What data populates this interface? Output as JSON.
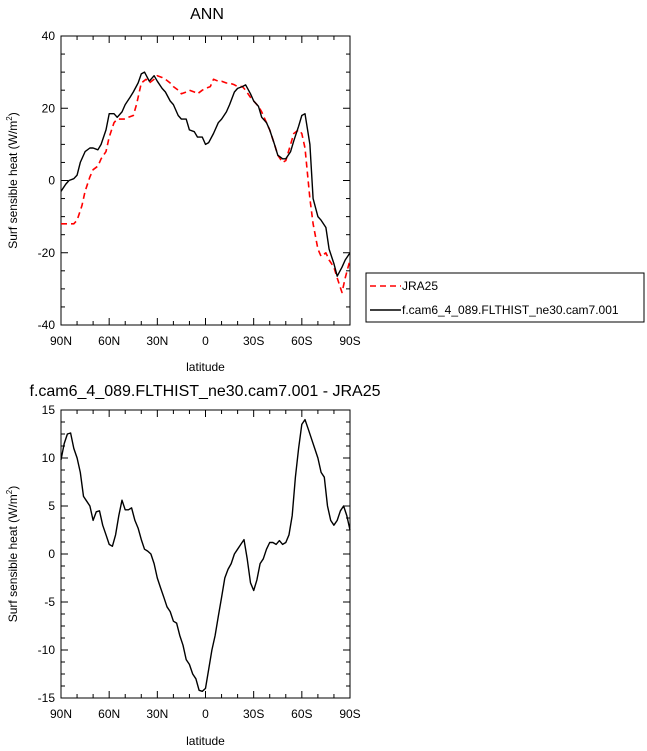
{
  "chart_data": [
    {
      "type": "line",
      "title": "ANN",
      "xlabel": "latitude",
      "ylabel": "Surf sensible heat (W/m",
      "ylabel_sup": "2",
      "ylabel_tail": ")",
      "xlim": [
        90,
        -90
      ],
      "ylim": [
        -40,
        40
      ],
      "xticks": [
        90,
        60,
        30,
        0,
        -30,
        -60,
        -90
      ],
      "xtick_labels": [
        "90N",
        "60N",
        "30N",
        "0",
        "30S",
        "60S",
        "90S"
      ],
      "yticks": [
        -40,
        -20,
        0,
        20,
        40
      ],
      "ytick_labels": [
        "-40",
        "-20",
        "0",
        "20",
        "40"
      ],
      "grid": false,
      "legend": "outside-right",
      "series": [
        {
          "name": "JRA25",
          "color": "#ff0000",
          "dash": "dashed",
          "x": [
            90,
            85,
            82,
            80,
            77,
            75,
            72,
            70,
            67,
            65,
            62,
            60,
            57,
            55,
            52,
            50,
            48,
            45,
            43,
            40,
            37,
            35,
            32,
            30,
            27,
            25,
            22,
            20,
            17,
            15,
            12,
            10,
            7,
            5,
            2,
            0,
            -3,
            -5,
            -8,
            -10,
            -13,
            -15,
            -18,
            -20,
            -23,
            -25,
            -28,
            -30,
            -33,
            -35,
            -38,
            -40,
            -43,
            -45,
            -48,
            -50,
            -53,
            -55,
            -58,
            -60,
            -62,
            -65,
            -67,
            -70,
            -72,
            -75,
            -77,
            -80,
            -82,
            -85,
            -87,
            -90
          ],
          "y": [
            -12,
            -12,
            -12,
            -11,
            -7,
            -3,
            1,
            3,
            4,
            6,
            8,
            12,
            16,
            17,
            17,
            17,
            17.5,
            18,
            21,
            27,
            28,
            27,
            28,
            29,
            28.5,
            28,
            27,
            26,
            25,
            24,
            24.5,
            25,
            24.5,
            24,
            25,
            25.5,
            26,
            28,
            27.5,
            27.5,
            27,
            27,
            26.5,
            26,
            26,
            25,
            23,
            22,
            20.5,
            19,
            16,
            14,
            10,
            7,
            5,
            5.5,
            10,
            13,
            14,
            13,
            9,
            -5,
            -12,
            -19,
            -21,
            -20,
            -22,
            -24,
            -27,
            -31,
            -27,
            -22
          ]
        },
        {
          "name": "f.cam6_4_089.FLTHIST_ne30.cam7.001",
          "color": "#000000",
          "dash": "solid",
          "x": [
            90,
            87,
            85,
            82,
            80,
            78,
            75,
            72,
            70,
            67,
            65,
            62,
            60,
            57,
            55,
            52,
            50,
            47,
            45,
            42,
            40,
            38,
            35,
            32,
            30,
            27,
            25,
            22,
            20,
            17,
            15,
            12,
            10,
            7,
            5,
            2,
            0,
            -2,
            -5,
            -8,
            -10,
            -13,
            -15,
            -18,
            -20,
            -23,
            -25,
            -28,
            -30,
            -33,
            -35,
            -38,
            -40,
            -43,
            -45,
            -48,
            -50,
            -53,
            -55,
            -58,
            -60,
            -62,
            -65,
            -67,
            -70,
            -72,
            -75,
            -77,
            -80,
            -82,
            -85,
            -87,
            -90
          ],
          "y": [
            -3,
            -1,
            0,
            0.5,
            1.5,
            5,
            8,
            9,
            9,
            8.5,
            10,
            14,
            18.5,
            18.5,
            17.5,
            19,
            21,
            23,
            24.5,
            27,
            29.5,
            30,
            27.5,
            29,
            27.5,
            25.5,
            24.5,
            22,
            21,
            18,
            17,
            17,
            14,
            13.5,
            12,
            12,
            10,
            10.5,
            13,
            16,
            17,
            19,
            21,
            24.5,
            25.5,
            26,
            26.5,
            24,
            22,
            20.5,
            17.5,
            16,
            14,
            10,
            7,
            6,
            6,
            8,
            11,
            15,
            18,
            18.5,
            10,
            -5,
            -10,
            -11,
            -13,
            -19,
            -23,
            -26.5,
            -24,
            -22,
            -20
          ]
        }
      ]
    },
    {
      "type": "line",
      "title": "f.cam6_4_089.FLTHIST_ne30.cam7.001 - JRA25",
      "xlabel": "latitude",
      "ylabel": "Surf sensible heat (W/m",
      "ylabel_sup": "2",
      "ylabel_tail": ")",
      "xlim": [
        90,
        -90
      ],
      "ylim": [
        -15,
        15
      ],
      "xticks": [
        90,
        60,
        30,
        0,
        -30,
        -60,
        -90
      ],
      "xtick_labels": [
        "90N",
        "60N",
        "30N",
        "0",
        "30S",
        "60S",
        "90S"
      ],
      "yticks": [
        -15,
        -10,
        -5,
        0,
        5,
        10,
        15
      ],
      "ytick_labels": [
        "-15",
        "-10",
        "-5",
        "0",
        "5",
        "10",
        "15"
      ],
      "grid": false,
      "series": [
        {
          "color": "#000000",
          "dash": "solid",
          "x": [
            90,
            88,
            86,
            84,
            82,
            80,
            78,
            76,
            74,
            72,
            70,
            68,
            66,
            64,
            62,
            60,
            58,
            56,
            54,
            52,
            50,
            48,
            46,
            44,
            42,
            40,
            38,
            36,
            34,
            32,
            30,
            28,
            26,
            24,
            22,
            20,
            18,
            16,
            14,
            12,
            10,
            8,
            6,
            4,
            2,
            0,
            -2,
            -4,
            -6,
            -8,
            -10,
            -12,
            -14,
            -16,
            -18,
            -20,
            -22,
            -24,
            -26,
            -28,
            -30,
            -32,
            -34,
            -36,
            -38,
            -40,
            -42,
            -44,
            -46,
            -48,
            -50,
            -52,
            -54,
            -56,
            -58,
            -60,
            -62,
            -64,
            -66,
            -68,
            -70,
            -72,
            -74,
            -76,
            -78,
            -80,
            -82,
            -84,
            -86,
            -88,
            -90
          ],
          "y": [
            9.8,
            11.5,
            12.5,
            12.6,
            11,
            10,
            8.5,
            6,
            5.5,
            5,
            3.5,
            4.4,
            4.5,
            3,
            2,
            1,
            0.8,
            2,
            4,
            5.6,
            4.6,
            4.6,
            4.8,
            3.5,
            2.7,
            1.5,
            0.5,
            0.3,
            0,
            -1,
            -2.5,
            -3.5,
            -4.5,
            -5.5,
            -6,
            -7,
            -7.2,
            -8.5,
            -9.5,
            -11,
            -11.5,
            -12.5,
            -13,
            -14.2,
            -14.3,
            -14,
            -12,
            -10,
            -8.5,
            -6.5,
            -4.5,
            -2.5,
            -1.6,
            -1,
            0,
            0.5,
            1,
            1.5,
            -0.5,
            -3,
            -3.8,
            -2.7,
            -1,
            -0.5,
            0.5,
            1.2,
            1.2,
            1,
            1.4,
            1,
            1.2,
            2,
            4,
            8,
            11,
            13.5,
            14,
            13,
            12,
            11,
            10,
            8.5,
            8,
            5,
            3.5,
            3,
            3.5,
            4.5,
            5,
            4,
            2.5
          ]
        }
      ]
    }
  ],
  "legend": {
    "entries": [
      {
        "label": "JRA25",
        "color": "#ff0000",
        "dash": "dashed"
      },
      {
        "label": "f.cam6_4_089.FLTHIST_ne30.cam7.001",
        "color": "#000000",
        "dash": "solid"
      }
    ]
  }
}
